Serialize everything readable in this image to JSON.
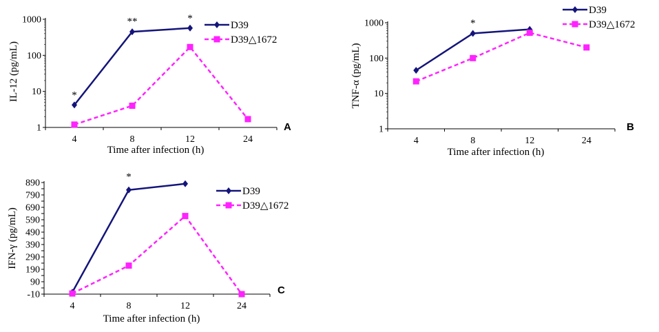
{
  "colors": {
    "D39": "#14147a",
    "D39_1672": "#ff22ff",
    "axis": "#000000"
  },
  "chart_data": [
    {
      "panel": "A",
      "type": "line",
      "scale": "log",
      "ylabel": "IL-12 (pg/mL)",
      "xlabel": "Time after infection (h)",
      "categories": [
        "4",
        "8",
        "12",
        "24"
      ],
      "ylim": [
        1,
        1000
      ],
      "yticks": [
        1,
        10,
        100,
        1000
      ],
      "ytick_labels": [
        "1",
        "10",
        "100",
        "1000"
      ],
      "series": [
        {
          "name": "D39",
          "values": [
            4.2,
            450,
            570,
            null
          ]
        },
        {
          "name": "D39△1672",
          "values": [
            1.2,
            4,
            170,
            1.7
          ]
        }
      ],
      "annotations": [
        {
          "category": "4",
          "value": 8,
          "text": "*"
        },
        {
          "category": "8",
          "value": 900,
          "text": "**"
        },
        {
          "category": "12",
          "value": 1100,
          "text": "*"
        }
      ]
    },
    {
      "panel": "B",
      "type": "line",
      "scale": "log",
      "ylabel": "TNF-α (pg/mL)",
      "xlabel": "Time after infection (h)",
      "categories": [
        "4",
        "8",
        "12",
        "24"
      ],
      "ylim": [
        1,
        1000
      ],
      "yticks": [
        1,
        10,
        100,
        1000
      ],
      "ytick_labels": [
        "1",
        "10",
        "100",
        "1000"
      ],
      "series": [
        {
          "name": "D39",
          "values": [
            45,
            500,
            650,
            null
          ]
        },
        {
          "name": "D39△1672",
          "values": [
            22,
            100,
            520,
            200
          ]
        }
      ],
      "annotations": [
        {
          "category": "8",
          "value": 1000,
          "text": "*"
        }
      ]
    },
    {
      "panel": "C",
      "type": "line",
      "scale": "linear",
      "ylabel": "IFN-γ (pg/mL)",
      "xlabel": "Time after infection (h)",
      "categories": [
        "4",
        "8",
        "12",
        "24"
      ],
      "ylim": [
        -10,
        890
      ],
      "yticks": [
        -10,
        40,
        90,
        140,
        190,
        240,
        290,
        340,
        390,
        440,
        490,
        540,
        590,
        640,
        690,
        740,
        790,
        840,
        890
      ],
      "ytick_labels": [
        "-10",
        "",
        "90",
        "",
        "190",
        "",
        "290",
        "",
        "390",
        "",
        "490",
        "",
        "590",
        "",
        "690",
        "",
        "790",
        "",
        "890"
      ],
      "series": [
        {
          "name": "D39",
          "values": [
            5,
            830,
            880,
            null
          ]
        },
        {
          "name": "D39△1672",
          "values": [
            -5,
            220,
            620,
            -10
          ]
        }
      ],
      "annotations": [
        {
          "category": "8",
          "value": 940,
          "text": "*"
        }
      ]
    }
  ]
}
